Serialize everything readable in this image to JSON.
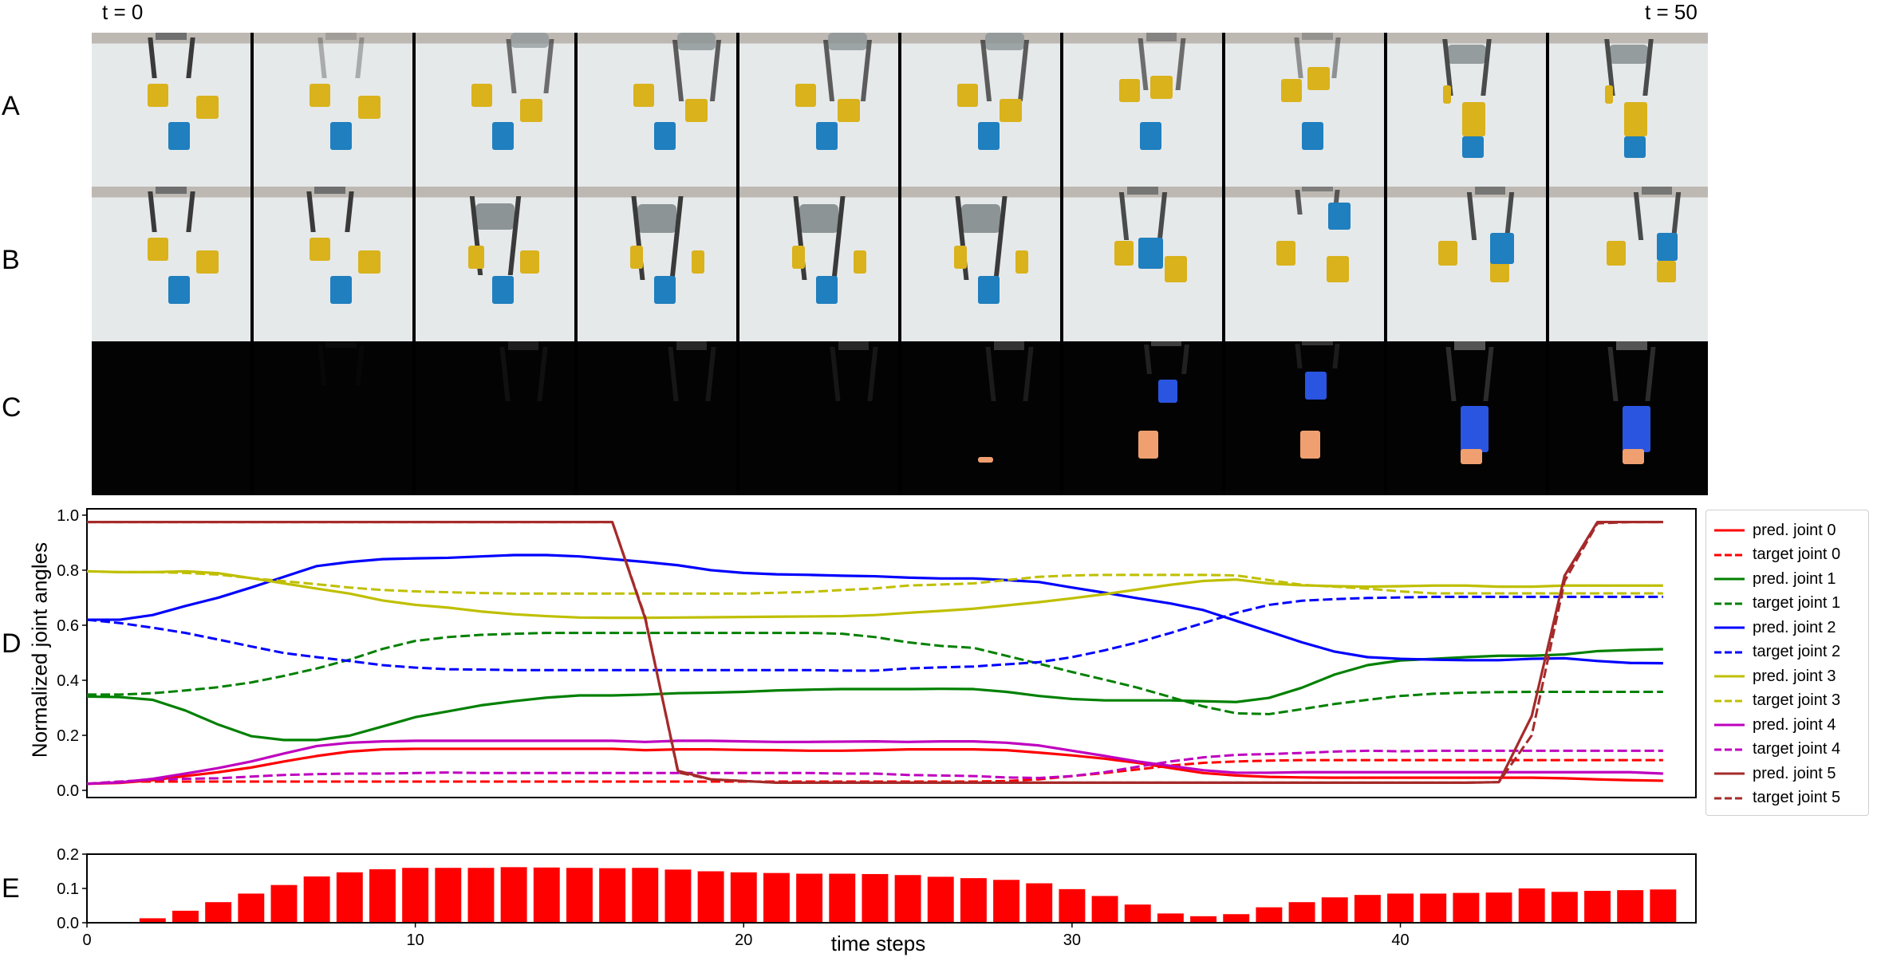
{
  "time_labels": {
    "start": "t = 0",
    "end": "t = 50"
  },
  "row_labels": {
    "a": "A",
    "b": "B",
    "c": "C",
    "d": "D",
    "e": "E"
  },
  "image_rows": [
    {
      "label": "A",
      "frames": 10
    },
    {
      "label": "B",
      "frames": 10
    },
    {
      "label": "C",
      "frames": 10
    }
  ],
  "chart_data": [
    {
      "type": "line",
      "panel": "D",
      "ylabel": "Normalized joint angles",
      "xlabel": "",
      "x": [
        0,
        1,
        2,
        3,
        4,
        5,
        6,
        7,
        8,
        9,
        10,
        11,
        12,
        13,
        14,
        15,
        16,
        17,
        18,
        19,
        20,
        21,
        22,
        23,
        24,
        25,
        26,
        27,
        28,
        29,
        30,
        31,
        32,
        33,
        34,
        35,
        36,
        37,
        38,
        39,
        40,
        41,
        42,
        43,
        44,
        45,
        46,
        47,
        48
      ],
      "xlim": [
        0,
        49
      ],
      "ylim": [
        -0.026,
        1.023
      ],
      "yticks": [
        "0.0",
        "0.2",
        "0.4",
        "0.6",
        "0.8",
        "1.0"
      ],
      "ytick_values": [
        0,
        0.2,
        0.4,
        0.6,
        0.8,
        1.0
      ],
      "grid": false,
      "legend_placement": "outside-right",
      "series": [
        {
          "name": "pred. joint 0",
          "color": "#ff0000",
          "style": "solid",
          "values": [
            0.024,
            0.027,
            0.037,
            0.052,
            0.066,
            0.083,
            0.105,
            0.125,
            0.141,
            0.149,
            0.151,
            0.151,
            0.151,
            0.151,
            0.151,
            0.151,
            0.151,
            0.146,
            0.149,
            0.149,
            0.147,
            0.146,
            0.144,
            0.144,
            0.146,
            0.149,
            0.149,
            0.149,
            0.146,
            0.137,
            0.127,
            0.115,
            0.1,
            0.081,
            0.063,
            0.054,
            0.049,
            0.047,
            0.046,
            0.046,
            0.046,
            0.046,
            0.046,
            0.046,
            0.046,
            0.044,
            0.04,
            0.037,
            0.035
          ]
        },
        {
          "name": "target joint 0",
          "color": "#ff0000",
          "style": "dashed",
          "values": [
            0.024,
            0.032,
            0.032,
            0.032,
            0.032,
            0.032,
            0.032,
            0.032,
            0.032,
            0.032,
            0.032,
            0.032,
            0.032,
            0.032,
            0.032,
            0.032,
            0.032,
            0.032,
            0.032,
            0.032,
            0.032,
            0.032,
            0.032,
            0.032,
            0.032,
            0.032,
            0.032,
            0.032,
            0.034,
            0.04,
            0.052,
            0.063,
            0.076,
            0.09,
            0.1,
            0.105,
            0.108,
            0.11,
            0.11,
            0.11,
            0.11,
            0.11,
            0.11,
            0.11,
            0.11,
            0.11,
            0.11,
            0.11,
            0.11
          ]
        },
        {
          "name": "pred. joint 1",
          "color": "#008000",
          "style": "solid",
          "values": [
            0.341,
            0.339,
            0.329,
            0.29,
            0.239,
            0.197,
            0.183,
            0.183,
            0.199,
            0.232,
            0.266,
            0.287,
            0.309,
            0.324,
            0.337,
            0.345,
            0.345,
            0.348,
            0.353,
            0.355,
            0.358,
            0.363,
            0.366,
            0.368,
            0.368,
            0.368,
            0.369,
            0.368,
            0.358,
            0.343,
            0.332,
            0.327,
            0.327,
            0.327,
            0.324,
            0.321,
            0.336,
            0.373,
            0.421,
            0.455,
            0.472,
            0.478,
            0.484,
            0.489,
            0.489,
            0.494,
            0.506,
            0.51,
            0.513
          ]
        },
        {
          "name": "target joint 1",
          "color": "#008000",
          "style": "dashed",
          "values": [
            0.348,
            0.348,
            0.353,
            0.363,
            0.375,
            0.392,
            0.416,
            0.443,
            0.475,
            0.514,
            0.543,
            0.557,
            0.565,
            0.569,
            0.572,
            0.572,
            0.572,
            0.572,
            0.572,
            0.572,
            0.572,
            0.572,
            0.572,
            0.569,
            0.557,
            0.538,
            0.525,
            0.518,
            0.489,
            0.46,
            0.43,
            0.402,
            0.373,
            0.339,
            0.305,
            0.28,
            0.277,
            0.295,
            0.314,
            0.329,
            0.343,
            0.351,
            0.355,
            0.357,
            0.358,
            0.358,
            0.358,
            0.358,
            0.358
          ]
        },
        {
          "name": "pred. joint 2",
          "color": "#0000ff",
          "style": "solid",
          "values": [
            0.62,
            0.62,
            0.637,
            0.67,
            0.7,
            0.737,
            0.776,
            0.815,
            0.83,
            0.84,
            0.843,
            0.845,
            0.85,
            0.855,
            0.855,
            0.85,
            0.84,
            0.83,
            0.818,
            0.8,
            0.79,
            0.785,
            0.783,
            0.78,
            0.778,
            0.773,
            0.77,
            0.77,
            0.764,
            0.757,
            0.737,
            0.718,
            0.698,
            0.679,
            0.655,
            0.616,
            0.577,
            0.538,
            0.504,
            0.484,
            0.478,
            0.475,
            0.473,
            0.473,
            0.478,
            0.48,
            0.47,
            0.463,
            0.462
          ]
        },
        {
          "name": "target joint 2",
          "color": "#0000ff",
          "style": "dashed",
          "values": [
            0.62,
            0.608,
            0.591,
            0.572,
            0.548,
            0.523,
            0.499,
            0.484,
            0.47,
            0.455,
            0.446,
            0.44,
            0.439,
            0.437,
            0.437,
            0.437,
            0.437,
            0.437,
            0.437,
            0.437,
            0.437,
            0.437,
            0.437,
            0.435,
            0.435,
            0.443,
            0.447,
            0.45,
            0.458,
            0.466,
            0.484,
            0.509,
            0.538,
            0.572,
            0.608,
            0.645,
            0.674,
            0.689,
            0.695,
            0.699,
            0.701,
            0.703,
            0.703,
            0.703,
            0.703,
            0.703,
            0.703,
            0.703,
            0.703
          ]
        },
        {
          "name": "pred. joint 3",
          "color": "#bfbf00",
          "style": "solid",
          "values": [
            0.796,
            0.793,
            0.793,
            0.796,
            0.789,
            0.771,
            0.752,
            0.733,
            0.715,
            0.69,
            0.674,
            0.664,
            0.65,
            0.64,
            0.633,
            0.628,
            0.627,
            0.627,
            0.628,
            0.629,
            0.63,
            0.631,
            0.632,
            0.633,
            0.637,
            0.645,
            0.652,
            0.66,
            0.672,
            0.684,
            0.698,
            0.713,
            0.73,
            0.747,
            0.761,
            0.766,
            0.752,
            0.745,
            0.742,
            0.74,
            0.742,
            0.744,
            0.744,
            0.74,
            0.74,
            0.744,
            0.744,
            0.744,
            0.744
          ]
        },
        {
          "name": "target joint 3",
          "color": "#bfbf00",
          "style": "dashed",
          "values": [
            0.796,
            0.793,
            0.793,
            0.79,
            0.784,
            0.771,
            0.76,
            0.749,
            0.737,
            0.728,
            0.723,
            0.72,
            0.717,
            0.715,
            0.715,
            0.715,
            0.715,
            0.715,
            0.715,
            0.715,
            0.715,
            0.718,
            0.721,
            0.728,
            0.734,
            0.744,
            0.748,
            0.752,
            0.764,
            0.776,
            0.781,
            0.783,
            0.783,
            0.783,
            0.783,
            0.781,
            0.764,
            0.747,
            0.74,
            0.733,
            0.723,
            0.716,
            0.716,
            0.716,
            0.716,
            0.716,
            0.716,
            0.716,
            0.716
          ]
        },
        {
          "name": "pred. joint 4",
          "color": "#bf00bf",
          "style": "solid",
          "values": [
            0.024,
            0.029,
            0.042,
            0.061,
            0.081,
            0.105,
            0.134,
            0.161,
            0.173,
            0.178,
            0.18,
            0.18,
            0.18,
            0.18,
            0.18,
            0.18,
            0.18,
            0.176,
            0.18,
            0.18,
            0.178,
            0.176,
            0.176,
            0.177,
            0.178,
            0.176,
            0.178,
            0.178,
            0.173,
            0.163,
            0.144,
            0.125,
            0.105,
            0.089,
            0.073,
            0.064,
            0.064,
            0.066,
            0.066,
            0.066,
            0.066,
            0.066,
            0.066,
            0.066,
            0.066,
            0.066,
            0.066,
            0.066,
            0.061
          ]
        },
        {
          "name": "target joint 4",
          "color": "#bf00bf",
          "style": "dashed",
          "values": [
            0.024,
            0.032,
            0.039,
            0.042,
            0.044,
            0.05,
            0.056,
            0.059,
            0.061,
            0.061,
            0.063,
            0.065,
            0.063,
            0.063,
            0.063,
            0.063,
            0.063,
            0.063,
            0.063,
            0.063,
            0.063,
            0.063,
            0.063,
            0.061,
            0.061,
            0.056,
            0.054,
            0.052,
            0.047,
            0.045,
            0.052,
            0.066,
            0.086,
            0.105,
            0.12,
            0.129,
            0.132,
            0.136,
            0.141,
            0.144,
            0.142,
            0.144,
            0.144,
            0.144,
            0.144,
            0.144,
            0.144,
            0.144,
            0.144
          ]
        },
        {
          "name": "pred. joint 5",
          "color": "#a52a2a",
          "style": "solid",
          "values": [
            0.975,
            0.975,
            0.975,
            0.975,
            0.975,
            0.975,
            0.975,
            0.975,
            0.975,
            0.975,
            0.975,
            0.975,
            0.975,
            0.975,
            0.975,
            0.975,
            0.975,
            0.625,
            0.071,
            0.04,
            0.034,
            0.028,
            0.028,
            0.028,
            0.028,
            0.028,
            0.028,
            0.028,
            0.028,
            0.028,
            0.028,
            0.028,
            0.028,
            0.028,
            0.028,
            0.028,
            0.028,
            0.028,
            0.028,
            0.028,
            0.028,
            0.028,
            0.028,
            0.03,
            0.27,
            0.78,
            0.975,
            0.975,
            0.975
          ]
        },
        {
          "name": "target joint 5",
          "color": "#a52a2a",
          "style": "dashed",
          "values": [
            0.975,
            0.975,
            0.975,
            0.975,
            0.975,
            0.975,
            0.975,
            0.975,
            0.975,
            0.975,
            0.975,
            0.975,
            0.975,
            0.975,
            0.975,
            0.975,
            0.975,
            0.63,
            0.065,
            0.04,
            0.034,
            0.028,
            0.028,
            0.028,
            0.028,
            0.028,
            0.028,
            0.028,
            0.028,
            0.028,
            0.028,
            0.028,
            0.028,
            0.028,
            0.028,
            0.028,
            0.028,
            0.028,
            0.028,
            0.028,
            0.028,
            0.028,
            0.028,
            0.03,
            0.2,
            0.76,
            0.97,
            0.975,
            0.975
          ]
        }
      ]
    },
    {
      "type": "bar",
      "panel": "E",
      "xlabel": "time steps",
      "ylabel": "",
      "color": "#ff0000",
      "x": [
        0,
        1,
        2,
        3,
        4,
        5,
        6,
        7,
        8,
        9,
        10,
        11,
        12,
        13,
        14,
        15,
        16,
        17,
        18,
        19,
        20,
        21,
        22,
        23,
        24,
        25,
        26,
        27,
        28,
        29,
        30,
        31,
        32,
        33,
        34,
        35,
        36,
        37,
        38,
        39,
        40,
        41,
        42,
        43,
        44,
        45,
        46,
        47,
        48
      ],
      "values": [
        0.0,
        0.002,
        0.013,
        0.035,
        0.06,
        0.085,
        0.11,
        0.135,
        0.147,
        0.156,
        0.16,
        0.16,
        0.16,
        0.162,
        0.161,
        0.16,
        0.159,
        0.16,
        0.155,
        0.15,
        0.147,
        0.145,
        0.143,
        0.143,
        0.142,
        0.139,
        0.134,
        0.13,
        0.125,
        0.115,
        0.098,
        0.078,
        0.053,
        0.027,
        0.019,
        0.025,
        0.045,
        0.06,
        0.074,
        0.081,
        0.085,
        0.085,
        0.087,
        0.088,
        0.1,
        0.09,
        0.093,
        0.095,
        0.097
      ],
      "xlim": [
        0,
        49
      ],
      "ylim": [
        0,
        0.2
      ],
      "xticks": [
        "0",
        "10",
        "20",
        "30",
        "40"
      ],
      "xtick_values": [
        0,
        10,
        20,
        30,
        40
      ],
      "yticks": [
        "0.0",
        "0.1",
        "0.2"
      ],
      "ytick_values": [
        0,
        0.1,
        0.2
      ],
      "grid": false
    }
  ]
}
